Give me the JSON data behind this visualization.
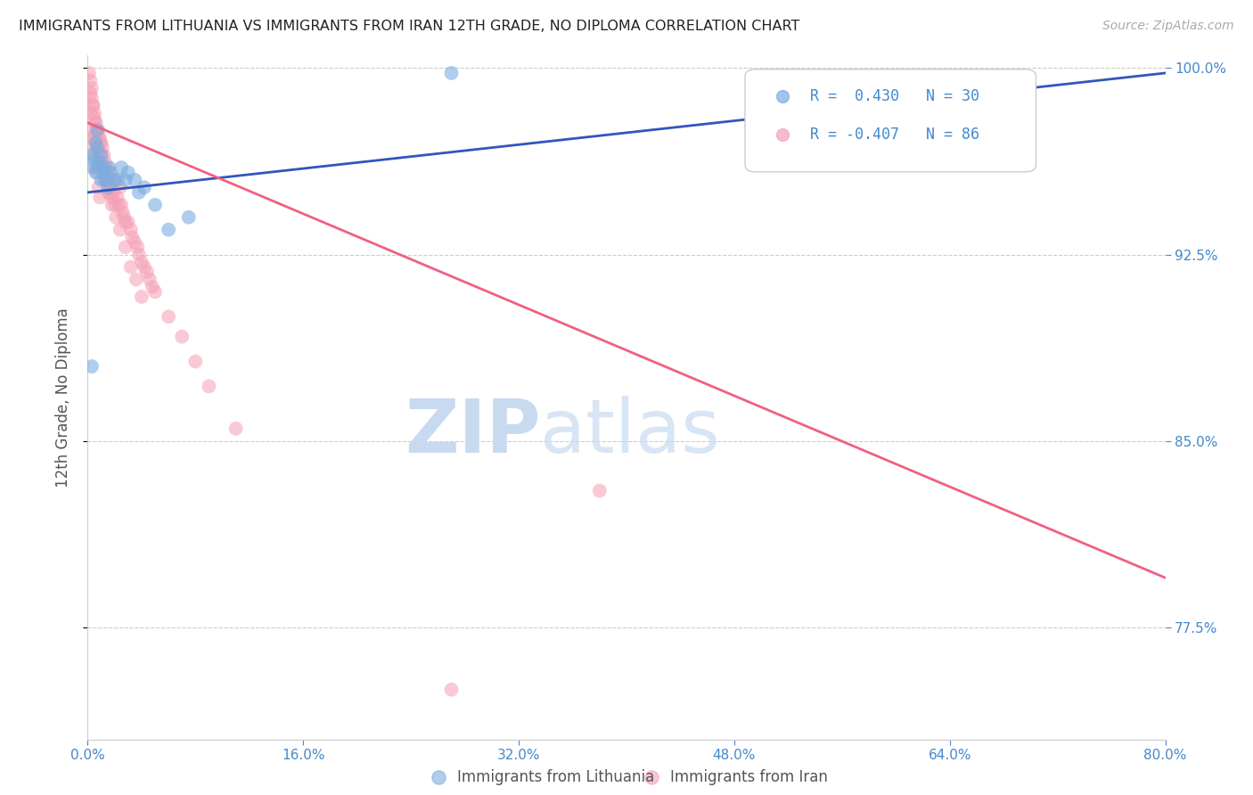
{
  "title": "IMMIGRANTS FROM LITHUANIA VS IMMIGRANTS FROM IRAN 12TH GRADE, NO DIPLOMA CORRELATION CHART",
  "source": "Source: ZipAtlas.com",
  "ylabel": "12th Grade, No Diploma",
  "xlabel_lithuania": "Immigrants from Lithuania",
  "xlabel_iran": "Immigrants from Iran",
  "R_lithuania": 0.43,
  "N_lithuania": 30,
  "R_iran": -0.407,
  "N_iran": 86,
  "xlim": [
    0.0,
    0.8
  ],
  "ylim": [
    0.73,
    1.005
  ],
  "yticks": [
    0.775,
    0.85,
    0.925,
    1.0
  ],
  "xticks": [
    0.0,
    0.16,
    0.32,
    0.48,
    0.64,
    0.8
  ],
  "title_color": "#222222",
  "source_color": "#888888",
  "axis_label_color": "#555555",
  "tick_label_color": "#4488cc",
  "grid_color": "#cccccc",
  "background_color": "#ffffff",
  "lithuania_color": "#7aade0",
  "iran_color": "#f5a0b5",
  "lithuania_line_color": "#3355bb",
  "iran_line_color": "#f06080",
  "watermark_color": "#dde8f4",
  "lithuania_x": [
    0.003,
    0.004,
    0.005,
    0.006,
    0.006,
    0.007,
    0.007,
    0.008,
    0.009,
    0.01,
    0.01,
    0.011,
    0.012,
    0.013,
    0.015,
    0.016,
    0.017,
    0.02,
    0.022,
    0.025,
    0.028,
    0.03,
    0.035,
    0.038,
    0.042,
    0.05,
    0.06,
    0.075,
    0.27,
    0.003
  ],
  "lithuania_y": [
    0.965,
    0.96,
    0.963,
    0.958,
    0.97,
    0.968,
    0.975,
    0.96,
    0.962,
    0.955,
    0.965,
    0.96,
    0.958,
    0.955,
    0.952,
    0.96,
    0.958,
    0.955,
    0.955,
    0.96,
    0.955,
    0.958,
    0.955,
    0.95,
    0.952,
    0.945,
    0.935,
    0.94,
    0.998,
    0.88
  ],
  "iran_x": [
    0.002,
    0.003,
    0.003,
    0.004,
    0.005,
    0.005,
    0.006,
    0.006,
    0.007,
    0.007,
    0.008,
    0.008,
    0.009,
    0.009,
    0.01,
    0.01,
    0.011,
    0.011,
    0.012,
    0.012,
    0.013,
    0.013,
    0.014,
    0.015,
    0.015,
    0.016,
    0.017,
    0.018,
    0.019,
    0.02,
    0.02,
    0.022,
    0.023,
    0.024,
    0.025,
    0.026,
    0.027,
    0.028,
    0.03,
    0.032,
    0.033,
    0.035,
    0.037,
    0.038,
    0.04,
    0.042,
    0.044,
    0.046,
    0.048,
    0.05,
    0.002,
    0.003,
    0.004,
    0.005,
    0.006,
    0.007,
    0.008,
    0.009,
    0.01,
    0.011,
    0.012,
    0.014,
    0.016,
    0.018,
    0.021,
    0.024,
    0.028,
    0.032,
    0.036,
    0.04,
    0.001,
    0.002,
    0.003,
    0.004,
    0.005,
    0.006,
    0.007,
    0.008,
    0.009,
    0.06,
    0.07,
    0.08,
    0.09,
    0.11,
    0.38,
    0.27
  ],
  "iran_y": [
    0.99,
    0.988,
    0.975,
    0.985,
    0.98,
    0.972,
    0.978,
    0.97,
    0.975,
    0.968,
    0.975,
    0.968,
    0.972,
    0.965,
    0.97,
    0.962,
    0.968,
    0.96,
    0.965,
    0.958,
    0.962,
    0.955,
    0.96,
    0.958,
    0.95,
    0.955,
    0.952,
    0.948,
    0.95,
    0.945,
    0.955,
    0.948,
    0.945,
    0.952,
    0.945,
    0.942,
    0.94,
    0.938,
    0.938,
    0.935,
    0.932,
    0.93,
    0.928,
    0.925,
    0.922,
    0.92,
    0.918,
    0.915,
    0.912,
    0.91,
    0.995,
    0.992,
    0.985,
    0.982,
    0.978,
    0.975,
    0.972,
    0.97,
    0.965,
    0.962,
    0.96,
    0.955,
    0.95,
    0.945,
    0.94,
    0.935,
    0.928,
    0.92,
    0.915,
    0.908,
    0.998,
    0.982,
    0.972,
    0.968,
    0.965,
    0.96,
    0.958,
    0.952,
    0.948,
    0.9,
    0.892,
    0.882,
    0.872,
    0.855,
    0.83,
    0.75
  ],
  "lith_trendline_x": [
    0.0,
    0.8
  ],
  "lith_trendline_y": [
    0.95,
    0.998
  ],
  "iran_trendline_x": [
    0.0,
    0.8
  ],
  "iran_trendline_y": [
    0.978,
    0.795
  ]
}
